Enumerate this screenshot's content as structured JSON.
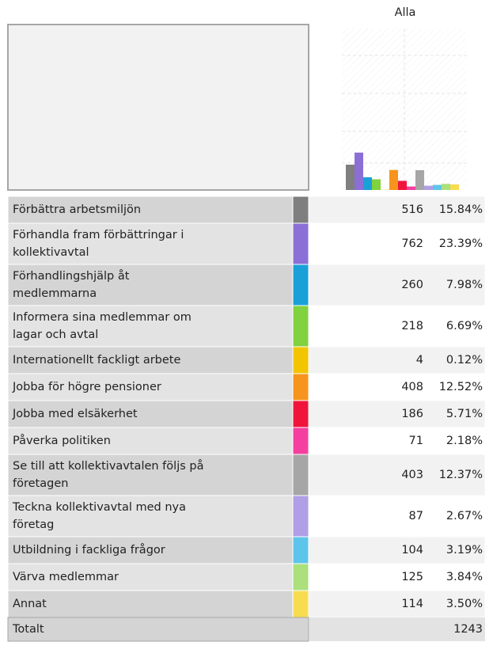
{
  "header": "Alla",
  "rows": [
    {
      "label": [
        "Förbättra arbetsmiljön"
      ],
      "value": 516,
      "percent": 15.84,
      "percent_label": "15.84%",
      "color": "#7f7f7f"
    },
    {
      "label": [
        "Förhandla fram förbättringar i",
        "kollektivavtal"
      ],
      "value": 762,
      "percent": 23.39,
      "percent_label": "23.39%",
      "color": "#8b6fd6"
    },
    {
      "label": [
        "Förhandlingshjälp åt",
        "medlemmarna"
      ],
      "value": 260,
      "percent": 7.98,
      "percent_label": "7.98%",
      "color": "#1aa0d8"
    },
    {
      "label": [
        "Informera sina medlemmar om",
        "lagar och avtal"
      ],
      "value": 218,
      "percent": 6.69,
      "percent_label": "6.69%",
      "color": "#82d13f"
    },
    {
      "label": [
        "Internationellt fackligt arbete"
      ],
      "value": 4,
      "percent": 0.12,
      "percent_label": "0.12%",
      "color": "#f2c500"
    },
    {
      "label": [
        "Jobba för högre pensioner"
      ],
      "value": 408,
      "percent": 12.52,
      "percent_label": "12.52%",
      "color": "#f7941d"
    },
    {
      "label": [
        "Jobba med elsäkerhet"
      ],
      "value": 186,
      "percent": 5.71,
      "percent_label": "5.71%",
      "color": "#f0143c"
    },
    {
      "label": [
        "Påverka politiken"
      ],
      "value": 71,
      "percent": 2.18,
      "percent_label": "2.18%",
      "color": "#f43fa0"
    },
    {
      "label": [
        "Se till att kollektivavtalen följs på",
        "företagen"
      ],
      "value": 403,
      "percent": 12.37,
      "percent_label": "12.37%",
      "color": "#a6a6a6"
    },
    {
      "label": [
        "Teckna kollektivavtal med nya",
        "företag"
      ],
      "value": 87,
      "percent": 2.67,
      "percent_label": "2.67%",
      "color": "#b09ee6"
    },
    {
      "label": [
        "Utbildning i fackliga frågor"
      ],
      "value": 104,
      "percent": 3.19,
      "percent_label": "3.19%",
      "color": "#5ec5ea"
    },
    {
      "label": [
        "Värva medlemmar"
      ],
      "value": 125,
      "percent": 3.84,
      "percent_label": "3.84%",
      "color": "#abe07d"
    },
    {
      "label": [
        "Annat"
      ],
      "value": 114,
      "percent": 3.5,
      "percent_label": "3.50%",
      "color": "#f7dc50"
    }
  ],
  "total": {
    "label": "Totalt",
    "value": 1243
  }
}
